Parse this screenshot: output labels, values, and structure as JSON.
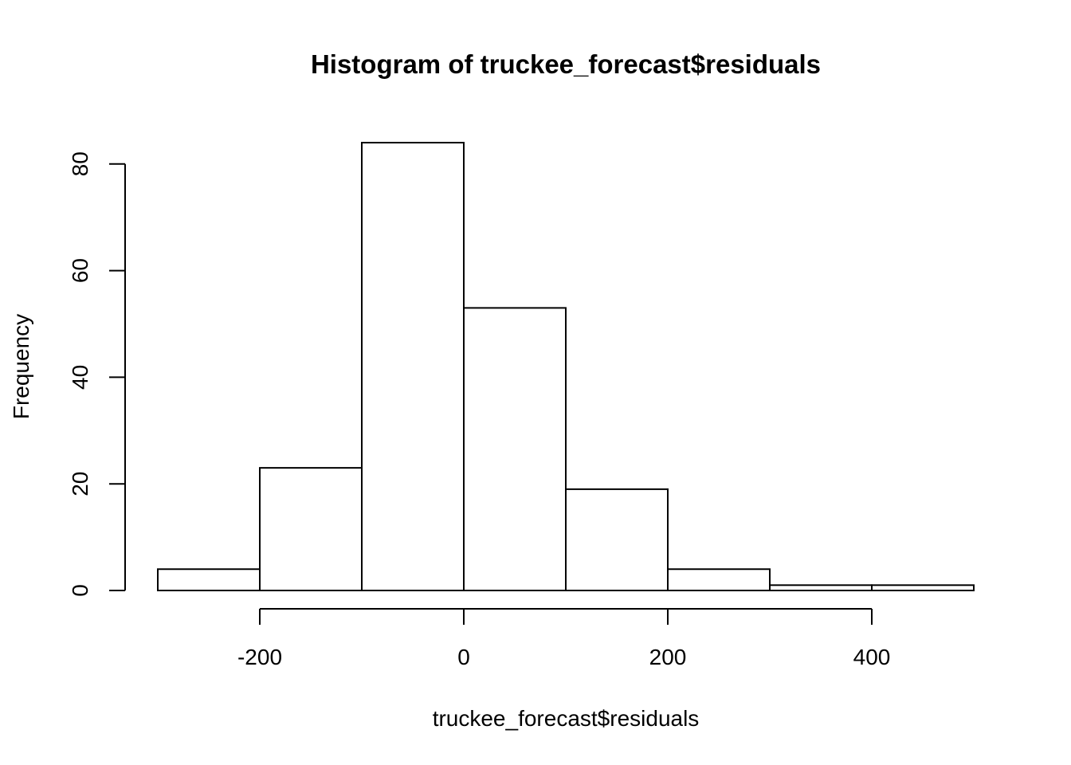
{
  "chart_data": {
    "type": "bar",
    "title": "Histogram of truckee_forecast$residuals",
    "xlabel": "truckee_forecast$residuals",
    "ylabel": "Frequency",
    "bins": [
      {
        "x0": -300,
        "x1": -200,
        "count": 4
      },
      {
        "x0": -200,
        "x1": -100,
        "count": 23
      },
      {
        "x0": -100,
        "x1": 0,
        "count": 84
      },
      {
        "x0": 0,
        "x1": 100,
        "count": 53
      },
      {
        "x0": 100,
        "x1": 200,
        "count": 19
      },
      {
        "x0": 200,
        "x1": 300,
        "count": 4
      },
      {
        "x0": 300,
        "x1": 400,
        "count": 1
      },
      {
        "x0": 400,
        "x1": 500,
        "count": 1
      }
    ],
    "xticks": [
      -200,
      0,
      200,
      400
    ],
    "yticks": [
      0,
      20,
      40,
      60,
      80
    ],
    "xlim": [
      -300,
      500
    ],
    "ylim": [
      0,
      84
    ],
    "grid": false,
    "bar_fill": "#ffffff",
    "bar_stroke": "#000000"
  }
}
